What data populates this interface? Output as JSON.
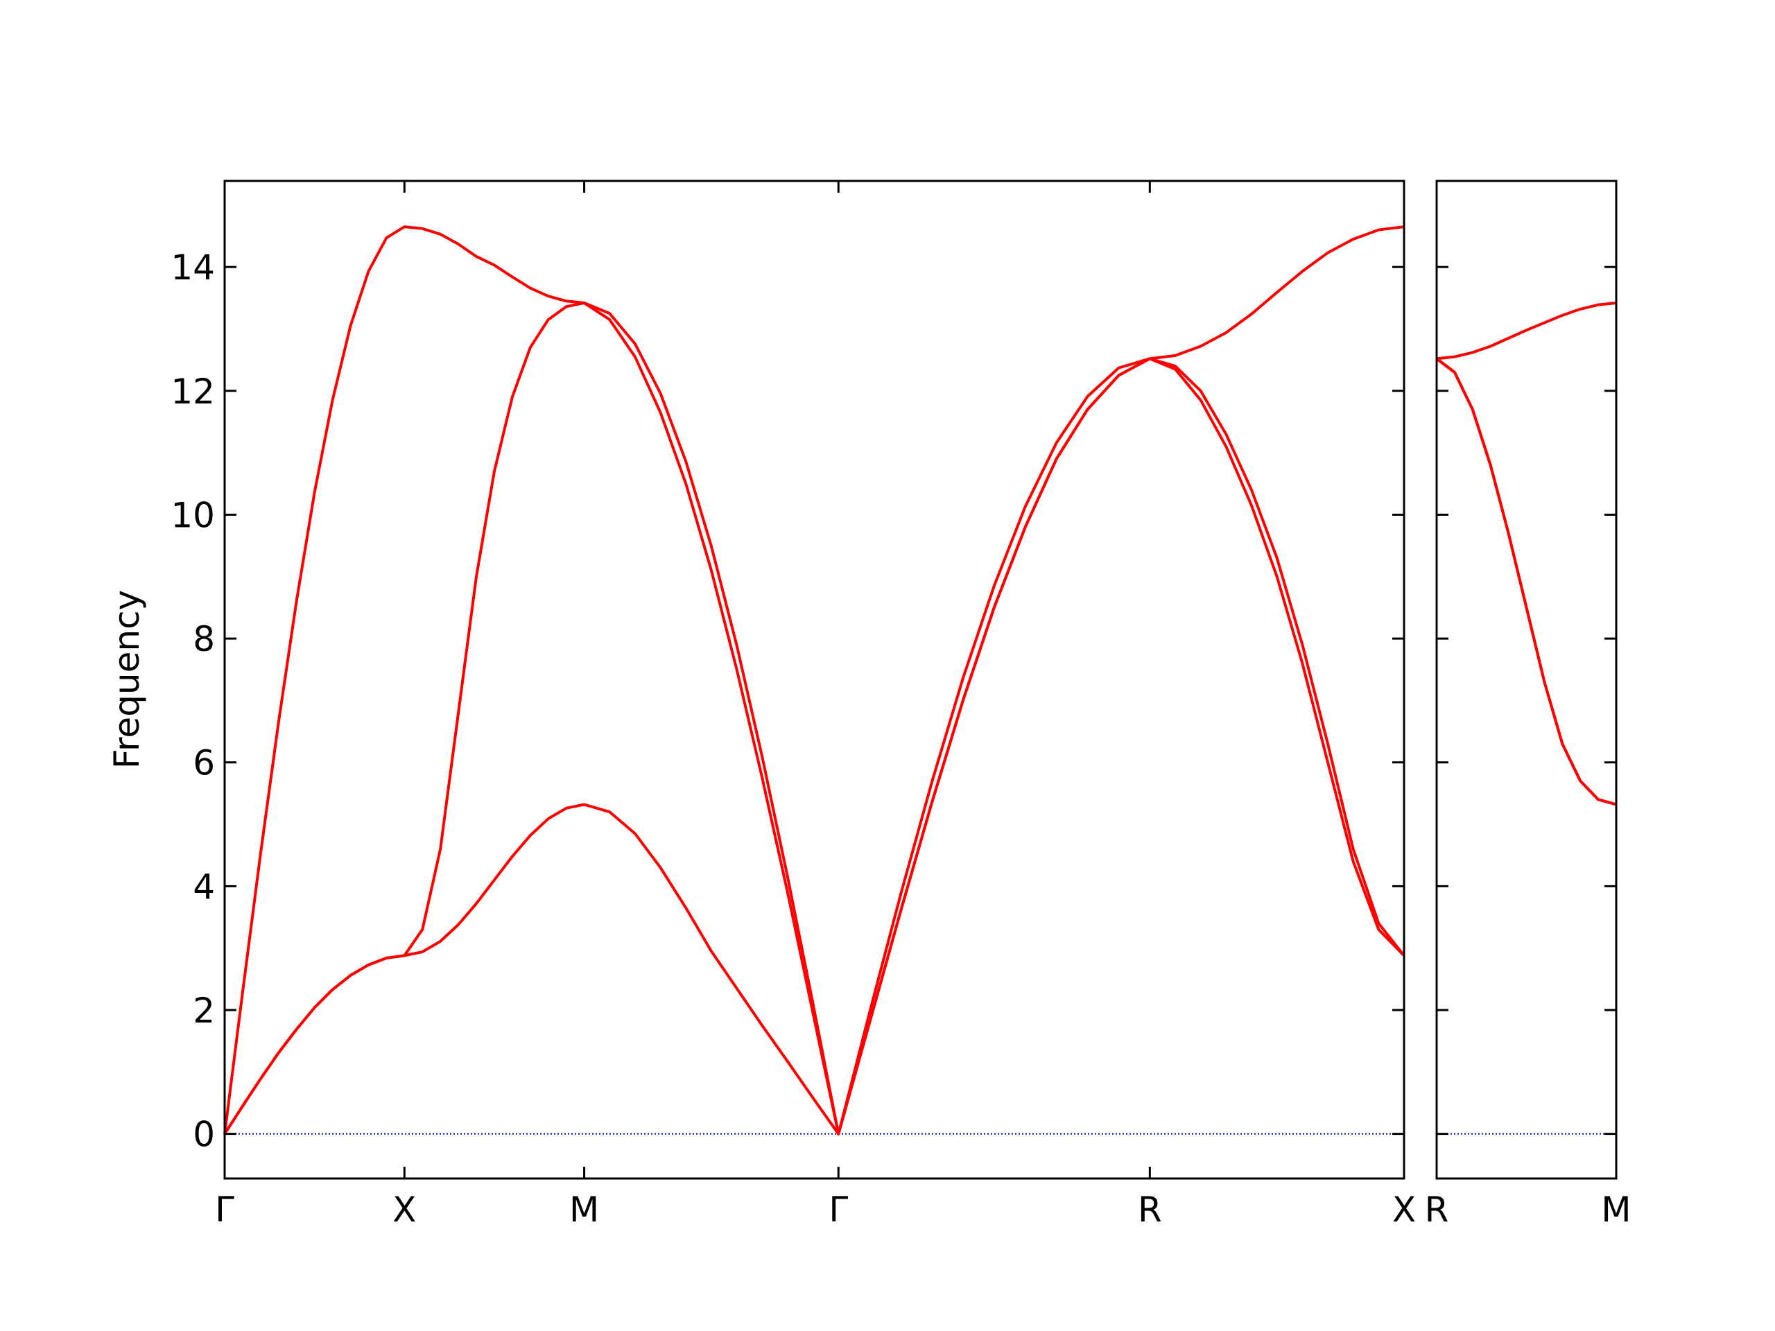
{
  "chart_data": [
    {
      "type": "line",
      "ylabel": "Frequency",
      "x": [
        0,
        0.05,
        0.1,
        0.15,
        0.2,
        0.25,
        0.3,
        0.35,
        0.4,
        0.45,
        0.5,
        0.55,
        0.6,
        0.65,
        0.7,
        0.75,
        0.8,
        0.85,
        0.9,
        0.95,
        1.0,
        1.0707,
        1.1414,
        1.2121,
        1.2828,
        1.3536,
        1.4243,
        1.495,
        1.5657,
        1.6364,
        1.7071,
        1.7937,
        1.8803,
        1.9669,
        2.0535,
        2.1401,
        2.2267,
        2.3133,
        2.3999,
        2.4865,
        2.5731,
        2.6438,
        2.7145,
        2.7852,
        2.8559,
        2.9267,
        2.9974,
        3.0681,
        3.1388,
        3.2095,
        3.2802
      ],
      "series": [
        {
          "color": "#ff0000",
          "values": [
            0,
            0.45,
            0.89,
            1.31,
            1.69,
            2.04,
            2.33,
            2.56,
            2.73,
            2.84,
            2.88,
            2.94,
            3.11,
            3.38,
            3.72,
            4.1,
            4.48,
            4.82,
            5.09,
            5.26,
            5.32,
            5.2,
            4.85,
            4.3,
            3.65,
            2.95,
            2.35,
            1.75,
            1.17,
            0.58,
            0,
            1.8,
            3.6,
            5.35,
            7.0,
            8.5,
            9.8,
            10.9,
            11.7,
            12.25,
            12.52,
            12.35,
            11.85,
            11.1,
            10.15,
            9.0,
            7.6,
            6.0,
            4.4,
            3.3,
            2.88
          ]
        },
        {
          "color": "#ff0000",
          "values": [
            0,
            0.45,
            0.89,
            1.31,
            1.69,
            2.04,
            2.33,
            2.56,
            2.73,
            2.84,
            2.88,
            3.3,
            4.6,
            6.8,
            9.0,
            10.7,
            11.9,
            12.7,
            13.15,
            13.36,
            13.42,
            13.15,
            12.55,
            11.65,
            10.5,
            9.1,
            7.5,
            5.75,
            3.9,
            1.95,
            0,
            1.8,
            3.6,
            5.35,
            7.0,
            8.5,
            9.8,
            10.9,
            11.7,
            12.25,
            12.52,
            12.4,
            12.0,
            11.3,
            10.4,
            9.3,
            7.9,
            6.3,
            4.6,
            3.4,
            2.88
          ]
        },
        {
          "color": "#ff0000",
          "values": [
            0,
            2.29,
            4.53,
            6.65,
            8.61,
            10.36,
            11.85,
            13.05,
            13.93,
            14.47,
            14.65,
            14.62,
            14.53,
            14.37,
            14.17,
            14.03,
            13.84,
            13.66,
            13.53,
            13.45,
            13.42,
            13.25,
            12.76,
            11.96,
            10.86,
            9.49,
            7.89,
            6.09,
            4.15,
            2.1,
            0,
            1.96,
            3.87,
            5.68,
            7.36,
            8.85,
            10.13,
            11.16,
            11.91,
            12.37,
            12.52,
            12.57,
            12.72,
            12.94,
            13.24,
            13.59,
            13.93,
            14.23,
            14.45,
            14.6,
            14.65
          ]
        }
      ],
      "xlim": [
        0,
        3.2802
      ],
      "ylim": [
        -0.72,
        15.39
      ],
      "xticks": [
        {
          "value": 0,
          "label": "Γ"
        },
        {
          "value": 0.5,
          "label": "X"
        },
        {
          "value": 1.0,
          "label": "M"
        },
        {
          "value": 1.7071,
          "label": "Γ"
        },
        {
          "value": 2.5731,
          "label": "R"
        },
        {
          "value": 3.2802,
          "label": "X"
        }
      ],
      "yticks": [
        0,
        2,
        4,
        6,
        8,
        10,
        12,
        14
      ],
      "show_ytick_labels": true,
      "hline": {
        "y": 0,
        "color": "#0000aa"
      }
    },
    {
      "type": "line",
      "x": [
        0,
        0.05,
        0.1,
        0.15,
        0.2,
        0.25,
        0.3,
        0.35,
        0.4,
        0.45,
        0.5
      ],
      "series": [
        {
          "color": "#ff0000",
          "values": [
            12.52,
            12.3,
            11.7,
            10.8,
            9.7,
            8.5,
            7.3,
            6.3,
            5.7,
            5.4,
            5.32
          ]
        },
        {
          "color": "#ff0000",
          "values": [
            12.52,
            12.3,
            11.7,
            10.8,
            9.7,
            8.5,
            7.3,
            6.3,
            5.7,
            5.4,
            5.32
          ]
        },
        {
          "color": "#ff0000",
          "values": [
            12.52,
            12.55,
            12.62,
            12.72,
            12.85,
            12.98,
            13.1,
            13.22,
            13.32,
            13.39,
            13.42
          ]
        }
      ],
      "xlim": [
        0,
        0.5
      ],
      "ylim": [
        -0.72,
        15.39
      ],
      "xticks": [
        {
          "value": 0,
          "label": "R"
        },
        {
          "value": 0.5,
          "label": "M"
        }
      ],
      "yticks": [
        0,
        2,
        4,
        6,
        8,
        10,
        12,
        14
      ],
      "show_ytick_labels": false,
      "hline": {
        "y": 0,
        "color": "#0000aa"
      }
    }
  ]
}
